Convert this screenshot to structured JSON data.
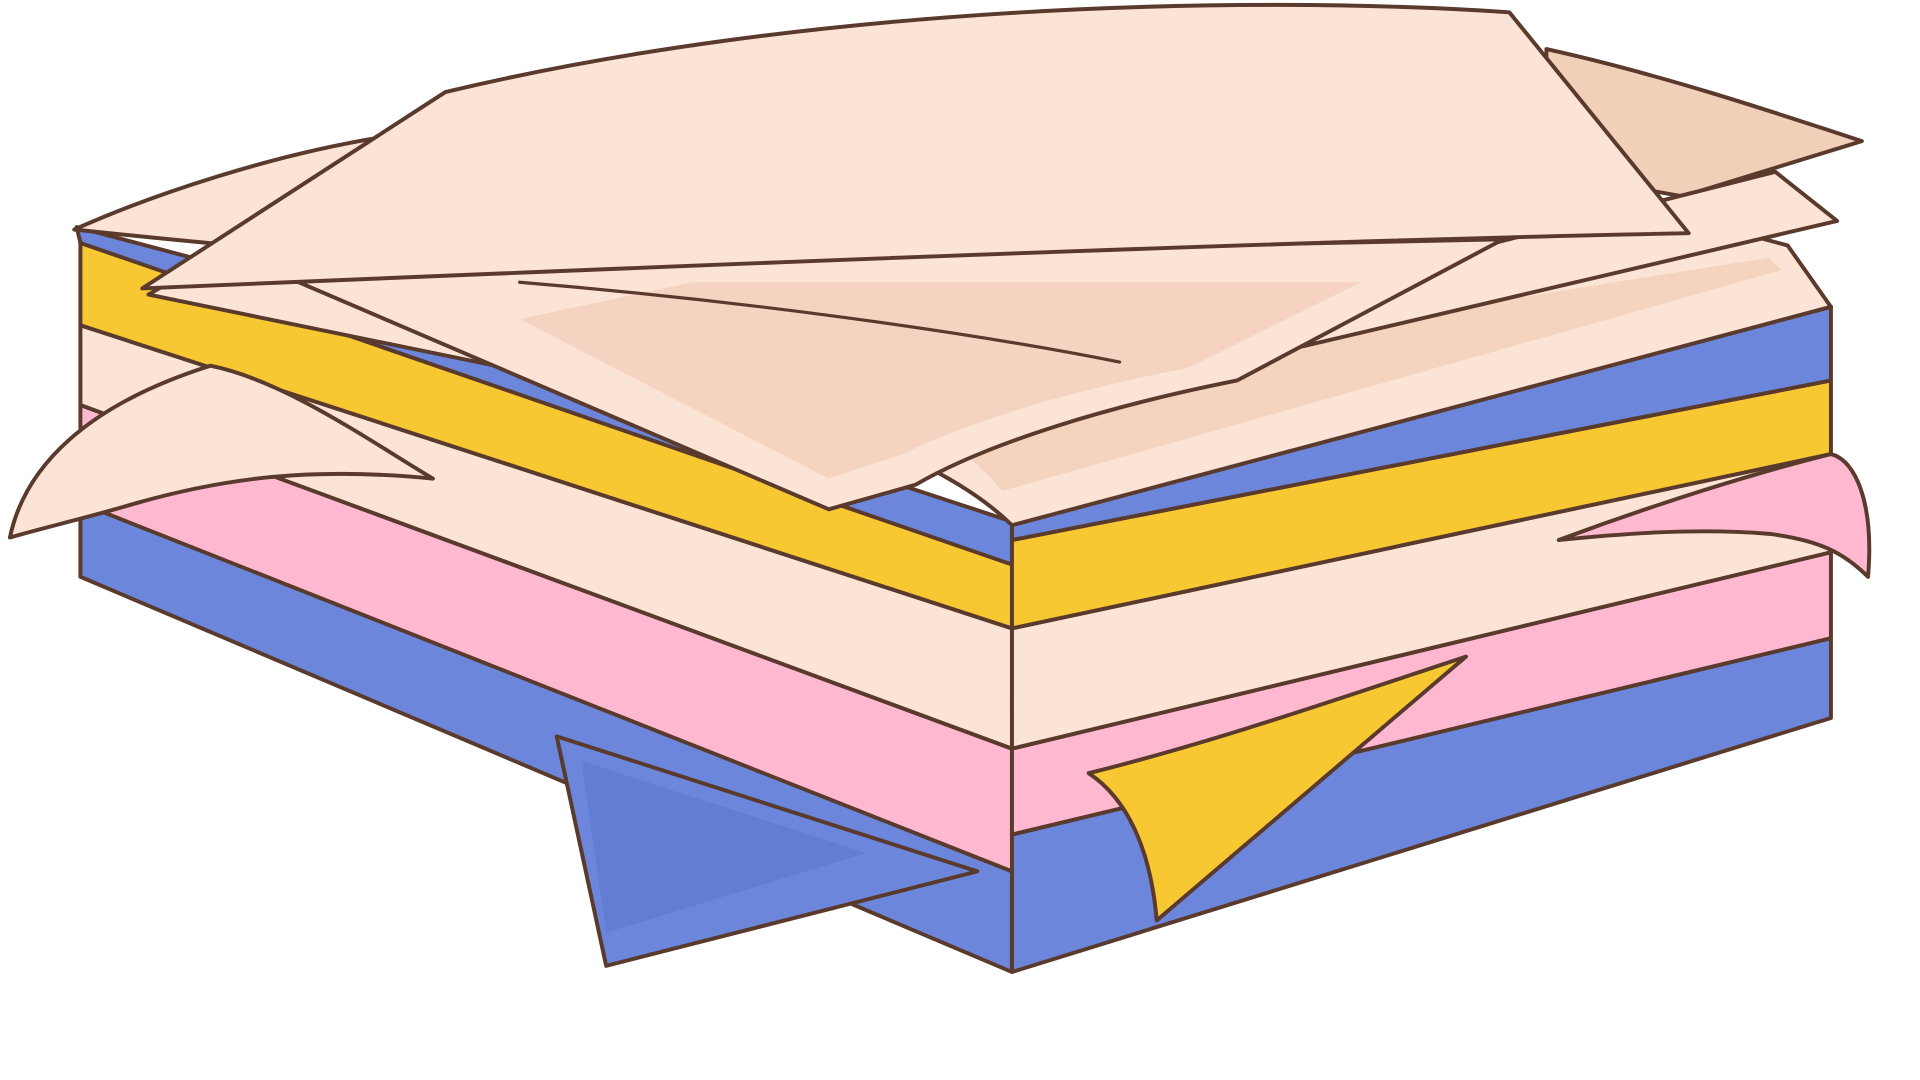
{
  "illustration": {
    "subject": "stack-of-paper",
    "colors": {
      "outline": "#5a3a2c",
      "cream": "#fbe3d5",
      "cream_shade": "#f2cfb8",
      "blue": "#6b86da",
      "blue_shade": "#5470c9",
      "yellow": "#f8c832",
      "pink": "#feb9d0",
      "pink_shade": "#f49fbd",
      "background": "#ffffff"
    },
    "layers_top_to_bottom": [
      "cream",
      "blue",
      "yellow",
      "cream",
      "pink",
      "blue"
    ],
    "loose_sheets": [
      "cream",
      "cream",
      "cream",
      "blue",
      "yellow",
      "pink"
    ]
  }
}
